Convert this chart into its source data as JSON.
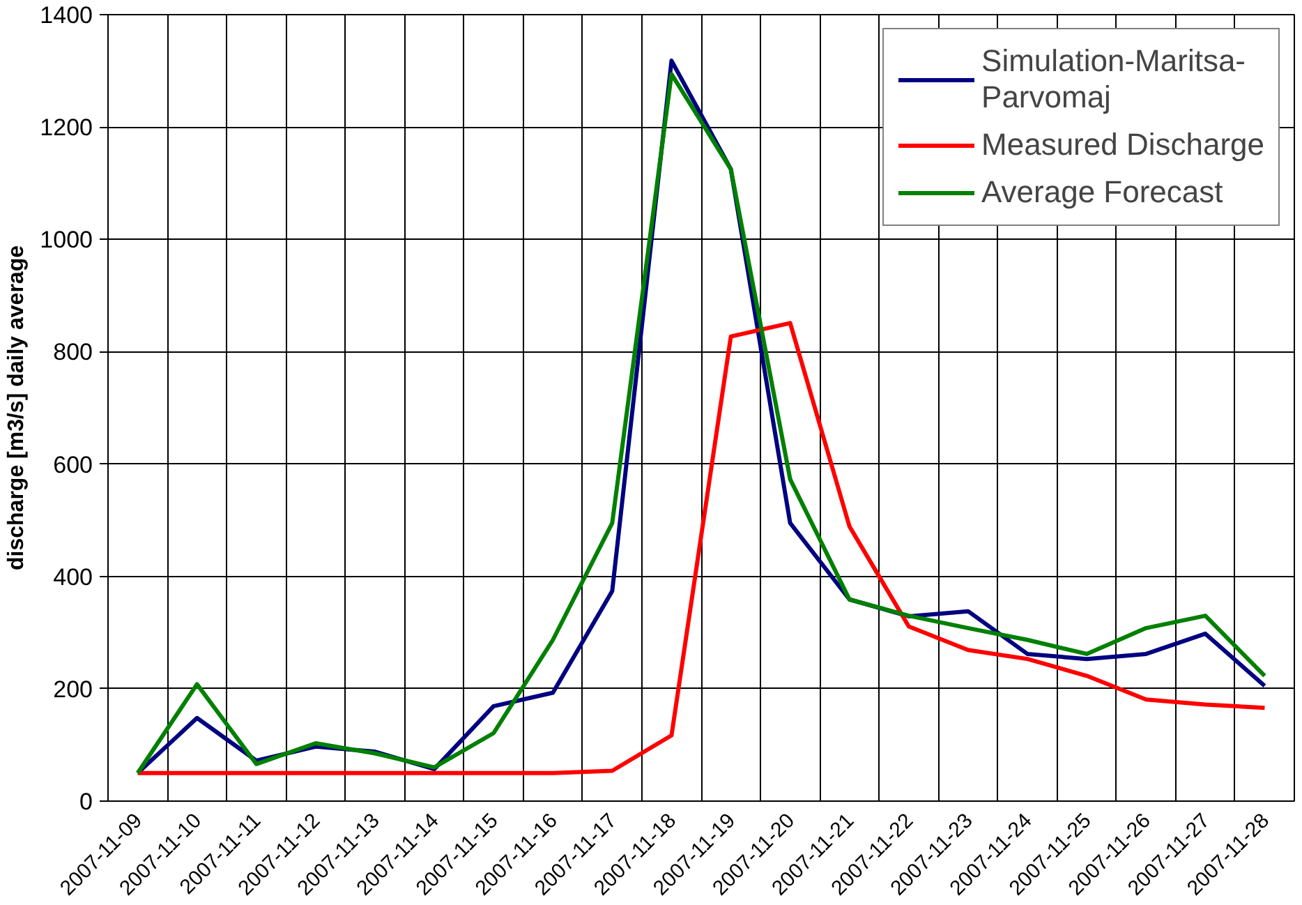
{
  "chart_data": {
    "type": "line",
    "ylabel": "discharge [m3/s] daily average",
    "categories": [
      "2007-11-09",
      "2007-11-10",
      "2007-11-11",
      "2007-11-12",
      "2007-11-13",
      "2007-11-14",
      "2007-11-15",
      "2007-11-16",
      "2007-11-17",
      "2007-11-18",
      "2007-11-19",
      "2007-11-20",
      "2007-11-21",
      "2007-11-22",
      "2007-11-23",
      "2007-11-24",
      "2007-11-25",
      "2007-11-26",
      "2007-11-27",
      "2007-11-28"
    ],
    "series": [
      {
        "name": "Simulation-Maritsa-Parvomaj",
        "color": "#000080",
        "values": [
          50,
          148,
          72,
          97,
          88,
          57,
          169,
          193,
          374,
          1318,
          1125,
          495,
          359,
          329,
          338,
          262,
          253,
          262,
          298,
          205
        ]
      },
      {
        "name": "Measured Discharge",
        "color": "#ff0000",
        "values": [
          50,
          50,
          50,
          50,
          50,
          50,
          50,
          50,
          54,
          117,
          827,
          851,
          489,
          311,
          269,
          253,
          223,
          181,
          172,
          166
        ]
      },
      {
        "name": "Average Forecast",
        "color": "#008000",
        "values": [
          50,
          208,
          66,
          103,
          85,
          60,
          121,
          287,
          495,
          1294,
          1125,
          573,
          359,
          330,
          308,
          287,
          262,
          308,
          330,
          223
        ]
      }
    ],
    "ylim": [
      0,
      1400
    ],
    "yticks": [
      0,
      200,
      400,
      600,
      800,
      1000,
      1200,
      1400
    ],
    "grid": true,
    "legend": "top right",
    "marker": "none",
    "line_style": "solid"
  }
}
